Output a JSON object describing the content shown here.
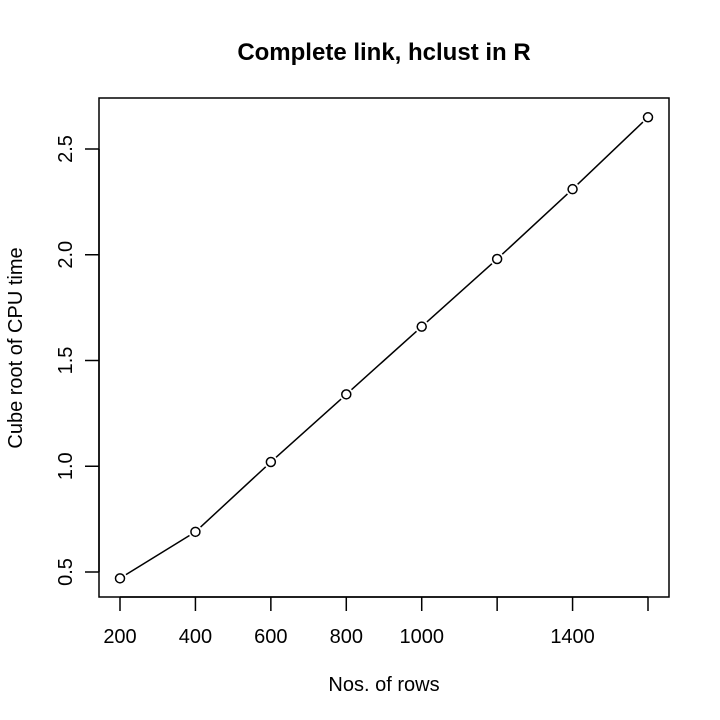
{
  "chart_data": {
    "type": "line",
    "title": "Complete link, hclust in R",
    "xlabel": "Nos. of rows",
    "ylabel": "Cube root of CPU time",
    "xlim": [
      200,
      1600
    ],
    "ylim": [
      0.5,
      2.5
    ],
    "x_ticks": [
      200,
      400,
      600,
      800,
      1000,
      1200,
      1400,
      1600
    ],
    "x_tick_labels": [
      "200",
      "400",
      "600",
      "800",
      "1000",
      "",
      "1400",
      ""
    ],
    "y_ticks": [
      0.5,
      1.0,
      1.5,
      2.0,
      2.5
    ],
    "y_tick_labels": [
      "0.5",
      "1.0",
      "1.5",
      "2.0",
      "2.5"
    ],
    "grid": false,
    "series": [
      {
        "x": [
          200,
          400,
          600,
          800,
          1000,
          1200,
          1400,
          1600
        ],
        "y": [
          0.47,
          0.69,
          1.02,
          1.34,
          1.66,
          1.98,
          2.31,
          2.65
        ]
      }
    ]
  }
}
